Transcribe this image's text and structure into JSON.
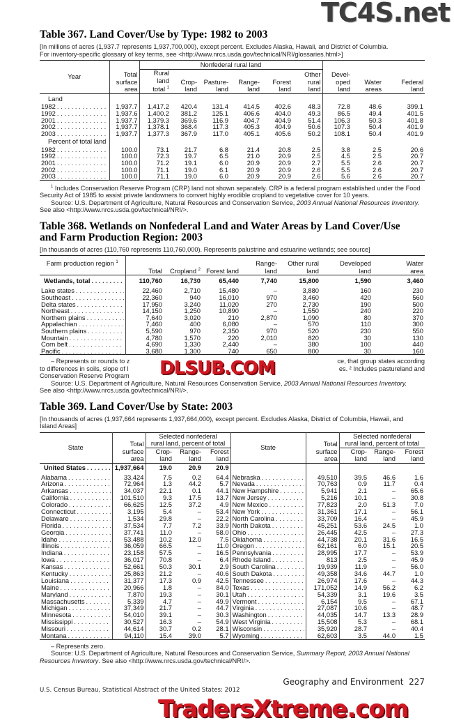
{
  "watermarks": {
    "top": "TC4S.net",
    "middle": "DLSUB.COM",
    "bottom": "TradersXtreme.com"
  },
  "t367": {
    "title": "Table 367. Land Cover/Use by Type: 1982 to 2003",
    "note_lines": [
      "[In millions of acres (1,937.7 represents 1,937,700,000), except percent. Excludes Alaska, Hawaii, and District of Columbia.",
      "For inventory-specific glossary of key terms, see <http://www.nrcs.usda.gov/technical/NRI/glossaries.html>]"
    ],
    "headers": {
      "year": "Year",
      "total": "Total\nsurface\narea",
      "nonfederal": "Nonfederal rural land",
      "rural": "Rural\nland\ntotal",
      "rural_sup": "1",
      "crop": "Crop-\nland",
      "pasture": "Pasture-\nland",
      "range": "Range-\nland",
      "forest": "Forest\nland",
      "other": "Other\nrural\nland",
      "developed": "Devel-\noped\nland",
      "water": "Water\nareas",
      "federal": "Federal\nland"
    },
    "section_land": "Land",
    "land_rows": [
      [
        "1982",
        "1,937.7",
        "1,417.2",
        "420.4",
        "131.4",
        "414.5",
        "402.6",
        "48.3",
        "72.8",
        "48.6",
        "399.1"
      ],
      [
        "1992",
        "1,937.6",
        "1,400.2",
        "381.2",
        "125.1",
        "406.6",
        "404.0",
        "49.3",
        "86.5",
        "49.4",
        "401.5"
      ],
      [
        "2001",
        "1,937.7",
        "1,379.3",
        "369.6",
        "116.9",
        "404.7",
        "404.9",
        "51.4",
        "106.3",
        "50.3",
        "401.8"
      ],
      [
        "2002",
        "1,937.7",
        "1,378.1",
        "368.4",
        "117.3",
        "405.3",
        "404.9",
        "50.6",
        "107.3",
        "50.4",
        "401.9"
      ],
      [
        "2003",
        "1,937.7",
        "1,377.3",
        "367.9",
        "117.0",
        "405.1",
        "405.6",
        "50.2",
        "108.1",
        "50.4",
        "401.9"
      ]
    ],
    "section_pct": "Percent of total land",
    "pct_rows": [
      [
        "1982",
        "100.0",
        "73.1",
        "21.7",
        "6.8",
        "21.4",
        "20.8",
        "2.5",
        "3.8",
        "2.5",
        "20.6"
      ],
      [
        "1992",
        "100.0",
        "72.3",
        "19.7",
        "6.5",
        "21.0",
        "20.9",
        "2.5",
        "4.5",
        "2.5",
        "20.7"
      ],
      [
        "2001",
        "100.0",
        "71.2",
        "19.1",
        "6.0",
        "20.9",
        "20.9",
        "2.7",
        "5.5",
        "2.6",
        "20.7"
      ],
      [
        "2002",
        "100.0",
        "71.1",
        "19.0",
        "6.1",
        "20.9",
        "20.9",
        "2.6",
        "5.5",
        "2.6",
        "20.7"
      ],
      [
        "2003",
        "100.0",
        "71.1",
        "19.0",
        "6.0",
        "20.9",
        "20.9",
        "2.6",
        "5.6",
        "2.6",
        "20.7"
      ]
    ],
    "footnote_sup": "1",
    "footnote": "Includes Conservation Reserve Program (CRP) land not shown separately. CRP is a federal program established under the Food Security Act of 1985 to assist private landowners to convert highly erodible cropland to vegetative cover for 10 years.",
    "source_prefix": "Source: U.S. Department of Agriculture, Natural Resources and Conservation Service, ",
    "source_italic": "2003 Annual National Resources Inventory",
    "source_suffix": ". See also <http://www.nrcs.usda.gov/technical/NRI/>."
  },
  "t368": {
    "title_lines": [
      "Table 368. Wetlands on Nonfederal Land and Water Areas by Land Cover/Use",
      "and Farm Production Region: 2003"
    ],
    "note": "[In thousands of acres (110,760 represents 110,760,000). Represents palustrine and estuarine wetlands; see source]",
    "headers": {
      "region": "Farm production region",
      "region_sup": "1",
      "total": "Total",
      "cropland": "Cropland",
      "cropland_sup": "2",
      "forest": "Forest land",
      "range": "Range-\nland",
      "other": "Other rural\nland",
      "developed": "Developed\nland",
      "water": "Water\narea"
    },
    "total_row": [
      "Wetlands, total",
      "110,760",
      "16,730",
      "65,440",
      "7,740",
      "15,800",
      "1,590",
      "3,460"
    ],
    "rows": [
      [
        "Lake states",
        "22,460",
        "2,710",
        "15,480",
        "–",
        "3,880",
        "160",
        "230"
      ],
      [
        "Southeast",
        "22,360",
        "940",
        "16,010",
        "970",
        "3,460",
        "420",
        "560"
      ],
      [
        "Delta states",
        "17,950",
        "3,240",
        "11,020",
        "270",
        "2,730",
        "190",
        "500"
      ],
      [
        "Northeast",
        "14,150",
        "1,250",
        "10,890",
        "–",
        "1,550",
        "240",
        "220"
      ],
      [
        "Northern plains",
        "7,640",
        "3,020",
        "210",
        "2,870",
        "1,090",
        "80",
        "370"
      ],
      [
        "Appalachian",
        "7,460",
        "400",
        "6,080",
        "–",
        "570",
        "110",
        "300"
      ],
      [
        "Southern plains",
        "5,590",
        "970",
        "2,350",
        "970",
        "520",
        "230",
        "550"
      ],
      [
        "Mountain",
        "4,780",
        "1,570",
        "220",
        "2,010",
        "820",
        "30",
        "130"
      ],
      [
        "Corn belt",
        "4,690",
        "1,330",
        "2,440",
        "–",
        "380",
        "100",
        "440"
      ],
      [
        "Pacific",
        "3,680",
        "1,300",
        "740",
        "650",
        "800",
        "30",
        "160"
      ]
    ],
    "footnote_visible": {
      "l1a": "– Represents or rounds to z",
      "l1b": "ce, that group states according",
      "l2a": "to differences  in soils, slope of l",
      "l2b": "es. ² Includes pastureland and",
      "l3a": "Conservation Reserve Program"
    },
    "source_prefix": "Source: U.S. Department of Agriculture, Natural Resources Conservation Service, ",
    "source_italic": "2003 Annual National Resources Inventory.",
    "source_line2": "See also <http://www.nrcs.usda.gov/technical/NRI/>."
  },
  "t369": {
    "title": "Table 369. Land Cover/Use by State: 2003",
    "note_lines": [
      "[In thousands of acres (1,937,664 represents 1,937,664,000), except percent. Excludes Alaska, District of Columbia, Hawaii, and",
      "Island Areas]"
    ],
    "headers": {
      "state": "State",
      "total": "Total\nsurface\narea",
      "group": "Selected nonfederal\nrural land, percent of total",
      "crop": "Crop-\nland",
      "range": "Range-\nland",
      "forest": "Forest\nland"
    },
    "us_row": [
      "United States",
      "1,937,664",
      "19.0",
      "20.9",
      "20.9"
    ],
    "left_rows": [
      [
        "Alabama",
        "33,424",
        "7.5",
        "0.2",
        "64.4"
      ],
      [
        "Arizona",
        "72,964",
        "1.3",
        "44.2",
        "5.7"
      ],
      [
        "Arkansas",
        "34,037",
        "22.1",
        "0.1",
        "44.1"
      ],
      [
        "California",
        "101,510",
        "9.3",
        "17.5",
        "13.7"
      ],
      [
        "Colorado",
        "66,625",
        "12.5",
        "37.2",
        "4.9"
      ],
      [
        "Connecticut",
        "3,195",
        "5.4",
        "–",
        "53.4"
      ],
      [
        "Delaware",
        "1,534",
        "29.8",
        "–",
        "22.2"
      ],
      [
        "Florida",
        "37,534",
        "7.7",
        "7.2",
        "33.9"
      ],
      [
        "Georgia",
        "37,741",
        "11.0",
        "–",
        "58.0"
      ],
      [
        "Idaho",
        "53,488",
        "10.2",
        "12.0",
        "7.5"
      ],
      [
        "Illinois",
        "36,059",
        "66.5",
        "–",
        "11.0"
      ],
      [
        "Indiana",
        "23,158",
        "57.5",
        "–",
        "16.5"
      ],
      [
        "Iowa",
        "36,017",
        "70.8",
        "–",
        "6.4"
      ],
      [
        "Kansas",
        "52,661",
        "50.3",
        "30.1",
        "2.9"
      ],
      [
        "Kentucky",
        "25,863",
        "21.2",
        "–",
        "40.6"
      ],
      [
        "Louisiana",
        "31,377",
        "17.3",
        "0.9",
        "42.5"
      ],
      [
        "Maine",
        "20,966",
        "1.8",
        "–",
        "84.0"
      ],
      [
        "Maryland",
        "7,870",
        "19.3",
        "–",
        "30.1"
      ],
      [
        "Massachusetts",
        "5,339",
        "4.7",
        "–",
        "49.9"
      ],
      [
        "Michigan",
        "37,349",
        "21.7",
        "–",
        "44.7"
      ],
      [
        "Minnesota",
        "54,010",
        "39.1",
        "–",
        "30.3"
      ],
      [
        "Mississippi",
        "30,527",
        "16.3",
        "–",
        "54.9"
      ],
      [
        "Missouri",
        "44,614",
        "30.7",
        "0.2",
        "28.1"
      ],
      [
        "Montana",
        "94,110",
        "15.4",
        "39.0",
        "5.7"
      ]
    ],
    "right_rows": [
      [
        "Nebraska",
        "49,510",
        "39.5",
        "46.6",
        "1.6"
      ],
      [
        "Nevada",
        "70,763",
        "0.9",
        "11.7",
        "0.4"
      ],
      [
        "New Hampshire",
        "5,941",
        "2.1",
        "–",
        "65.6"
      ],
      [
        "New Jersey",
        "5,216",
        "10.1",
        "–",
        "30.8"
      ],
      [
        "New Mexico",
        "77,823",
        "2.0",
        "51.3",
        "7.0"
      ],
      [
        "New York",
        "31,361",
        "17.1",
        "–",
        "56.1"
      ],
      [
        "North Carolina",
        "33,709",
        "16.4",
        "–",
        "45.9"
      ],
      [
        "North Dakota",
        "45,251",
        "53.6",
        "24.5",
        "1.0"
      ],
      [
        "Ohio",
        "26,445",
        "42.5",
        "–",
        "27.3"
      ],
      [
        "Oklahoma",
        "44,738",
        "20.1",
        "31.6",
        "16.5"
      ],
      [
        "Oregon",
        "62,161",
        "6.0",
        "15.1",
        "20.5"
      ],
      [
        "Pennsylvania",
        "28,995",
        "17.7",
        "–",
        "53.9"
      ],
      [
        "Rhode Island",
        "813",
        "2.5",
        "–",
        "45.9"
      ],
      [
        "South Carolina",
        "19,939",
        "11.9",
        "–",
        "56.0"
      ],
      [
        "South Dakota",
        "49,358",
        "34.6",
        "44.7",
        "1.0"
      ],
      [
        "Tennessee",
        "26,974",
        "17.6",
        "–",
        "44.3"
      ],
      [
        "Texas",
        "171,052",
        "14.9",
        "56.2",
        "6.2"
      ],
      [
        "Utah",
        "54,339",
        "3.1",
        "19.6",
        "3.5"
      ],
      [
        "Vermont",
        "6,154",
        "9.5",
        "–",
        "67.1"
      ],
      [
        "Virginia",
        "27,087",
        "10.6",
        "–",
        "48.7"
      ],
      [
        "Washington",
        "44,035",
        "14.7",
        "13.3",
        "28.9"
      ],
      [
        "West Virginia",
        "15,508",
        "5.3",
        "–",
        "68.1"
      ],
      [
        "Wisconsin",
        "35,920",
        "28.7",
        "–",
        "40.4"
      ],
      [
        "Wyoming",
        "62,603",
        "3.5",
        "44.0",
        "1.5"
      ]
    ],
    "footnote": "– Represents zero.",
    "source_prefix": "Source: U.S. Department of Agriculture, Natural Resources and Conservation Service, ",
    "source_italic": "Summary Report, 2003 Annual National Resources Inventory",
    "source_suffix": ". See also <http://www.nrcs.usda.gov/technical/NRI/>."
  },
  "footer": {
    "section": "Geography and Environment",
    "page": "227",
    "publication": "U.S. Census Bureau, Statistical Abstract of the United States: 2012"
  }
}
